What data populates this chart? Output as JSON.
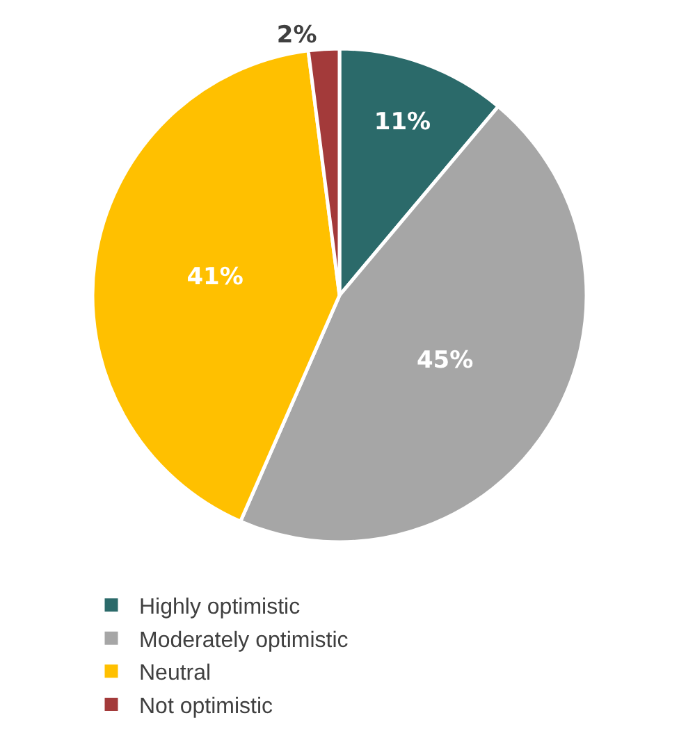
{
  "chart_data": {
    "type": "pie",
    "categories": [
      "Highly optimistic",
      "Moderately optimistic",
      "Neutral",
      "Not optimistic"
    ],
    "values": [
      11,
      45,
      41,
      2
    ],
    "value_labels": [
      "11%",
      "45%",
      "41%",
      "2%"
    ],
    "colors": [
      "#2b6a6a",
      "#a6a6a6",
      "#ffc000",
      "#a33a3a"
    ],
    "legend": "bottom"
  }
}
